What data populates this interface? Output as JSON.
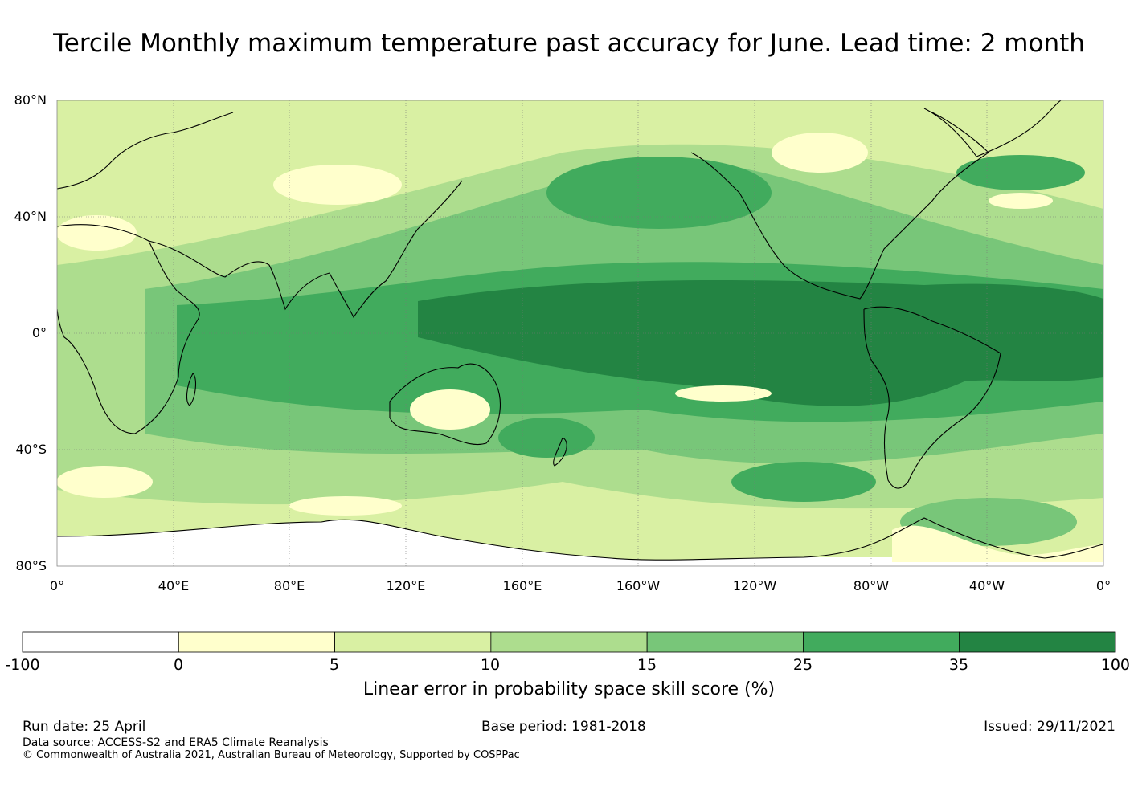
{
  "title": "Tercile Monthly maximum temperature past accuracy for June. Lead time: 2 month",
  "map": {
    "lat_ticks": [
      "80°N",
      "40°N",
      "0°",
      "40°S",
      "80°S"
    ],
    "lon_ticks": [
      "0°",
      "40°E",
      "80°E",
      "120°E",
      "160°E",
      "160°W",
      "120°W",
      "80°W",
      "40°W",
      "0°"
    ]
  },
  "colorbar": {
    "title": "Linear error in probability space skill score (%)",
    "levels": [
      "-100",
      "0",
      "5",
      "10",
      "15",
      "25",
      "35",
      "100"
    ],
    "colors": [
      "#ffffff",
      "#ffffcc",
      "#d9f0a3",
      "#addd8e",
      "#78c679",
      "#41ab5d",
      "#238443"
    ]
  },
  "footer": {
    "run_date": "Run date: 25 April",
    "base_period": "Base period: 1981-2018",
    "issued": "Issued: 29/11/2021",
    "data_source": "Data source: ACCESS-S2 and ERA5 Climate Reanalysis",
    "copyright": "© Commonwealth of Australia 2021, Australian Bureau of Meteorology, Supported by COSPPac"
  }
}
